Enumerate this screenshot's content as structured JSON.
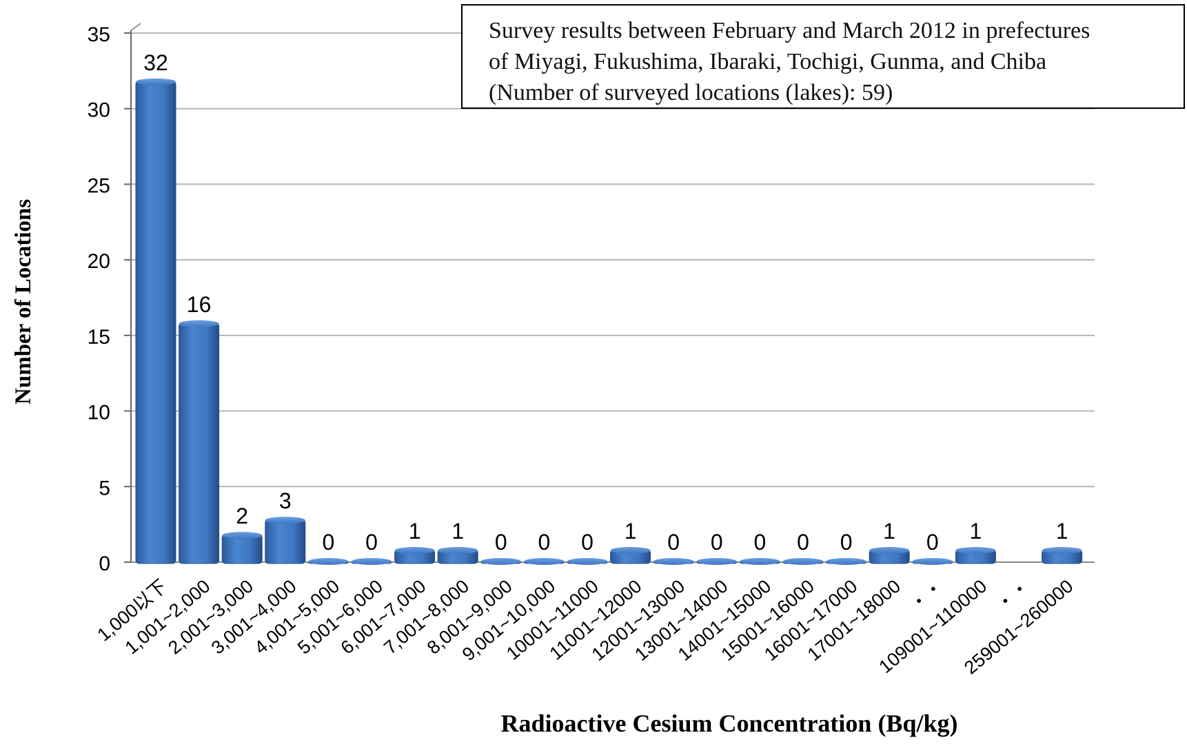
{
  "chart_data": {
    "type": "bar",
    "title": "",
    "xlabel": "Radioactive Cesium Concentration (Bq/kg)",
    "ylabel": "Number of Locations",
    "ylim": [
      0,
      35
    ],
    "yticks": [
      "0",
      "5",
      "10",
      "15",
      "20",
      "25",
      "30",
      "35"
    ],
    "grid": true,
    "categories": [
      "1,000以下",
      "1,001~2,000",
      "2,001~3,000",
      "3,001~4,000",
      "4,001~5,000",
      "5,001~6,000",
      "6,001~7,000",
      "7,001~8,000",
      "8,001~9,000",
      "9,001~10,000",
      "10001~11000",
      "11001~12000",
      "12001~13000",
      "13001~14000",
      "14001~15000",
      "15001~16000",
      "16001~17000",
      "17001~18000",
      "・・",
      "109001~110000",
      "・・",
      "259001~260000"
    ],
    "values": [
      32,
      16,
      2,
      3,
      0,
      0,
      1,
      1,
      0,
      0,
      0,
      1,
      0,
      0,
      0,
      0,
      0,
      1,
      0,
      1,
      null,
      1
    ],
    "data_labels": [
      "32",
      "16",
      "2",
      "3",
      "0",
      "0",
      "1",
      "1",
      "0",
      "0",
      "0",
      "1",
      "0",
      "0",
      "0",
      "0",
      "0",
      "1",
      "0",
      "1",
      "",
      "1"
    ],
    "bar_color": "#3f76c1",
    "annotation": [
      "Survey results between  February and March  2012 in prefectures",
      "of  Miyagi, Fukushima, Ibaraki, Tochigi, Gunma, and Chiba",
      "(Number of surveyed locations (lakes): 59)"
    ]
  }
}
